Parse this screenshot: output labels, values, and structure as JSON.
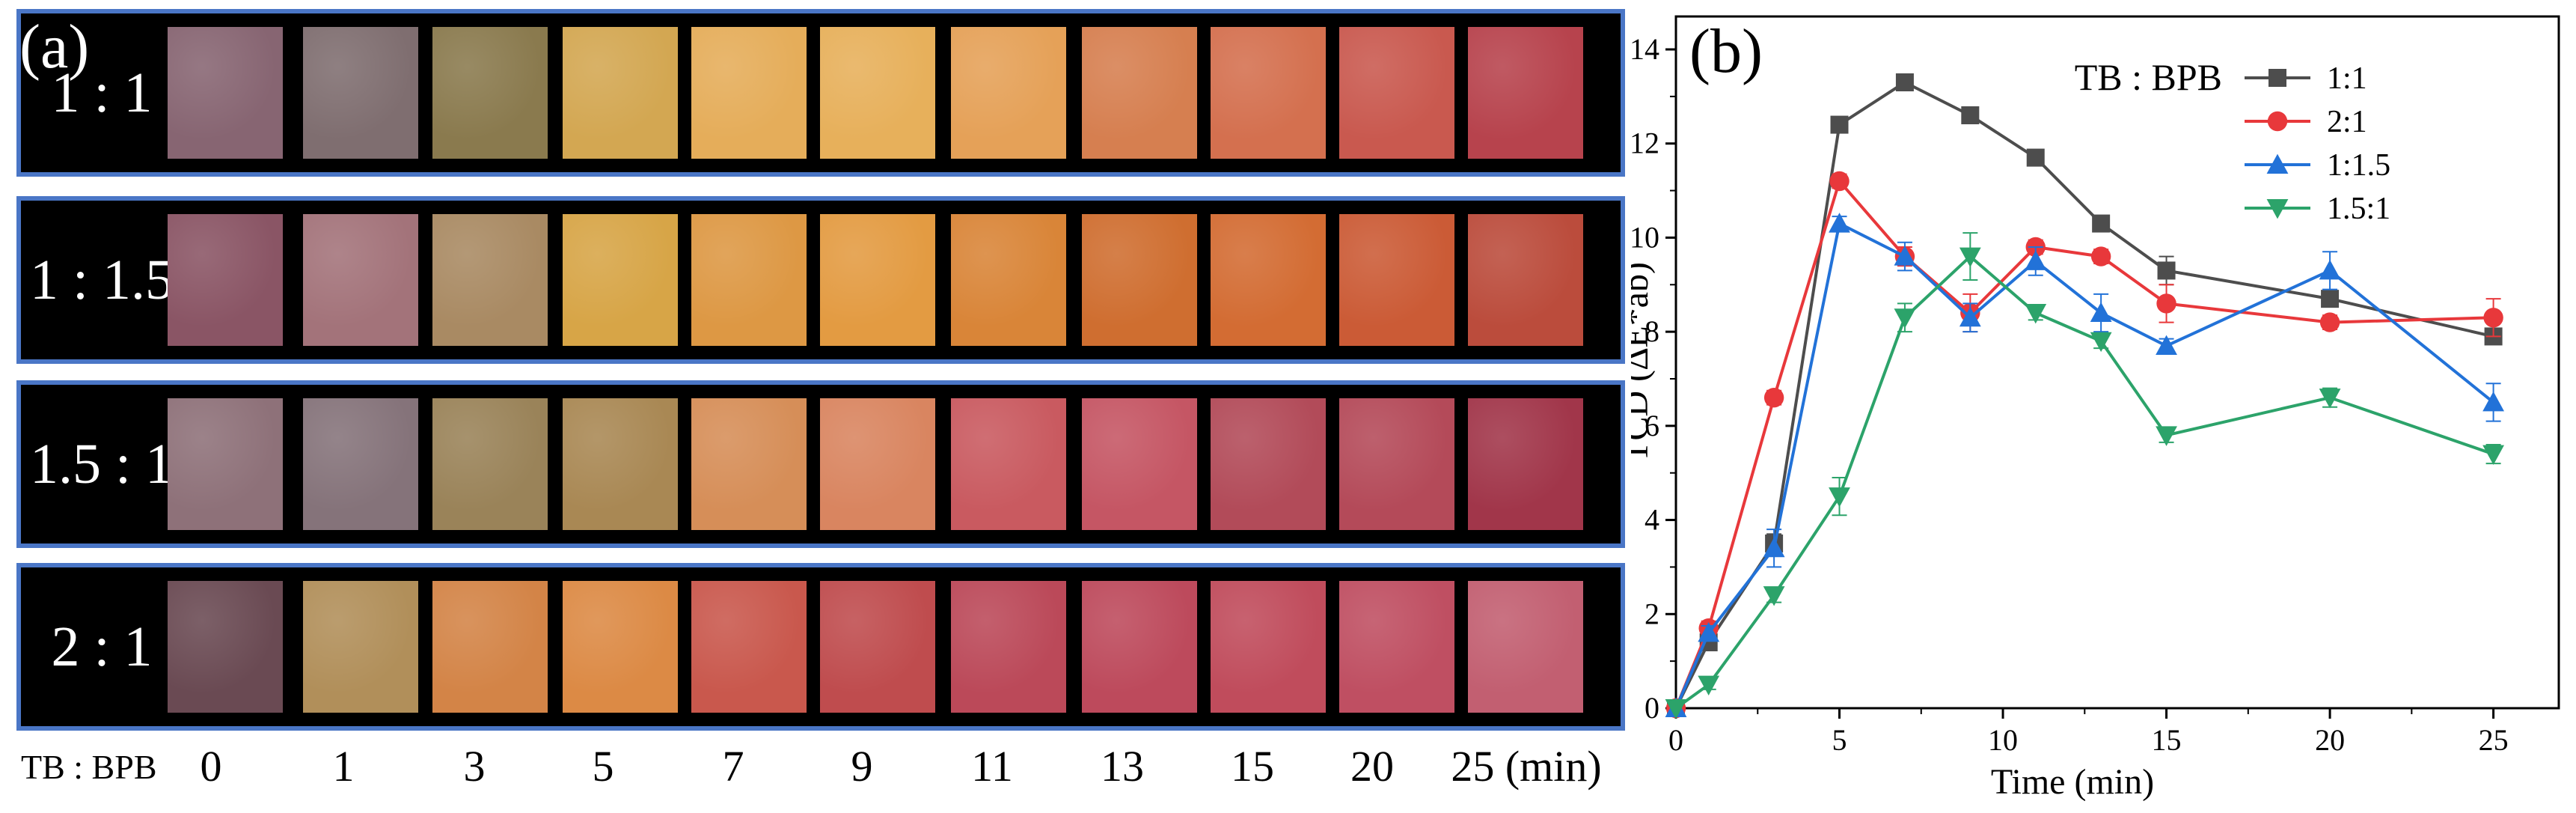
{
  "panel_a": {
    "tag": "(a)",
    "axis_title": "TB : BPB",
    "time_labels": [
      "0",
      "1",
      "3",
      "5",
      "7",
      "9",
      "11",
      "13",
      "15",
      "20",
      "25 (min)"
    ],
    "rows": [
      {
        "label": "1 : 1",
        "colors": [
          "#876572",
          "#7f6e70",
          "#8a7a4e",
          "#d3a752",
          "#e5ad5a",
          "#e7b05b",
          "#e5a158",
          "#d67f50",
          "#d4704f",
          "#c9594f",
          "#b7434d"
        ]
      },
      {
        "label": "1 : 1.5",
        "colors": [
          "#8a5565",
          "#a3737a",
          "#a98a63",
          "#d7a547",
          "#dd9844",
          "#e39b42",
          "#d98538",
          "#cf6e30",
          "#d36c33",
          "#cb5b36",
          "#bb4c3c"
        ]
      },
      {
        "label": "1.5 : 1",
        "colors": [
          "#8e7179",
          "#85737a",
          "#9a8359",
          "#a98854",
          "#d68e58",
          "#d98560",
          "#c95a60",
          "#c55664",
          "#b24b59",
          "#b44a59",
          "#a1364a"
        ]
      },
      {
        "label": "2 : 1",
        "colors": [
          "#6a4a53",
          "#b18f5a",
          "#d38447",
          "#dc8a45",
          "#c9584d",
          "#bf4c4e",
          "#bb4959",
          "#bd4a5c",
          "#c04c5c",
          "#bf4f62",
          "#c25f71"
        ]
      }
    ]
  },
  "panel_b": {
    "tag": "(b)",
    "legend_title": "TB : BPB"
  },
  "chart_data": {
    "type": "line",
    "xlabel": "Time (min)",
    "ylabel": "TCD (∆E*ab)",
    "xlim": [
      0,
      27
    ],
    "ylim": [
      0,
      14.7
    ],
    "xticks": [
      0,
      5,
      10,
      15,
      20,
      25
    ],
    "yticks": [
      0,
      2,
      4,
      6,
      8,
      10,
      12,
      14
    ],
    "legend_position": "top-right",
    "series": [
      {
        "name": "1:1",
        "color": "#4d4d4d",
        "marker": "square",
        "x": [
          0,
          1,
          3,
          5,
          7,
          9,
          11,
          13,
          15,
          20,
          25
        ],
        "y": [
          0,
          1.4,
          3.5,
          12.4,
          13.3,
          12.6,
          11.7,
          10.3,
          9.3,
          8.7,
          7.9
        ],
        "err": [
          0,
          0.15,
          0.2,
          0.15,
          0.1,
          0.1,
          0.1,
          0.15,
          0.3,
          0.15,
          0.15
        ]
      },
      {
        "name": "2:1",
        "color": "#e8383b",
        "marker": "circle",
        "x": [
          0,
          1,
          3,
          5,
          7,
          9,
          11,
          13,
          15,
          20,
          25
        ],
        "y": [
          0,
          1.7,
          6.6,
          11.2,
          9.6,
          8.4,
          9.8,
          9.6,
          8.6,
          8.2,
          8.3
        ],
        "err": [
          0,
          0.15,
          0.15,
          0.15,
          0.2,
          0.4,
          0.15,
          0.15,
          0.4,
          0.15,
          0.4
        ]
      },
      {
        "name": "1:1.5",
        "color": "#2272d8",
        "marker": "triangle-up",
        "x": [
          0,
          1,
          3,
          5,
          7,
          9,
          11,
          13,
          15,
          20,
          25
        ],
        "y": [
          0,
          1.6,
          3.4,
          10.3,
          9.6,
          8.3,
          9.5,
          8.4,
          7.7,
          9.3,
          6.5
        ],
        "err": [
          0,
          0.15,
          0.4,
          0.15,
          0.3,
          0.3,
          0.3,
          0.4,
          0.15,
          0.4,
          0.4
        ]
      },
      {
        "name": "1.5:1",
        "color": "#2ca36a",
        "marker": "triangle-down",
        "x": [
          0,
          1,
          3,
          5,
          7,
          9,
          11,
          13,
          15,
          20,
          25
        ],
        "y": [
          0,
          0.5,
          2.4,
          4.5,
          8.3,
          9.6,
          8.4,
          7.8,
          5.8,
          6.6,
          5.4
        ],
        "err": [
          0,
          0.1,
          0.15,
          0.4,
          0.3,
          0.5,
          0.15,
          0.15,
          0.15,
          0.2,
          0.2
        ]
      }
    ]
  }
}
